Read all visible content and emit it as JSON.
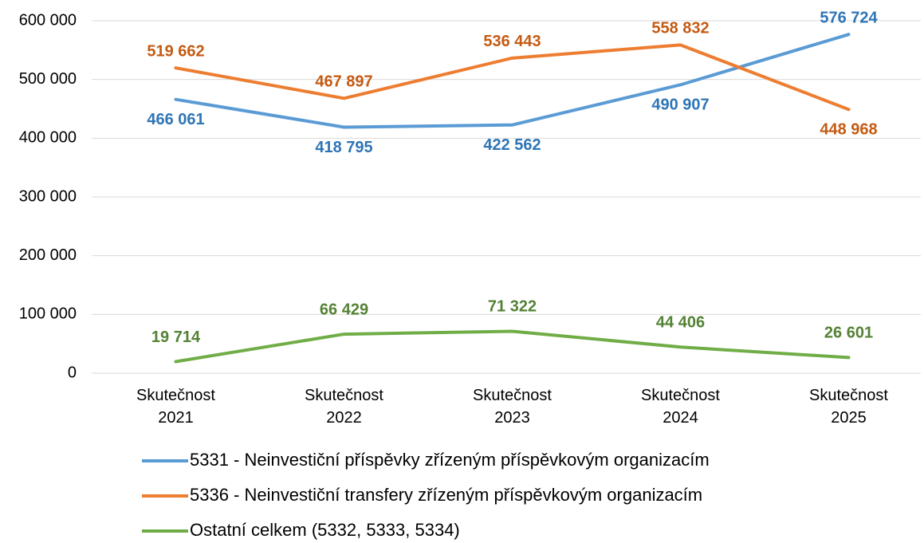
{
  "chart_data": {
    "type": "line",
    "categories": [
      "Skutečnost 2021",
      "Skutečnost 2022",
      "Skutečnost 2023",
      "Skutečnost 2024",
      "Skutečnost 2025"
    ],
    "series": [
      {
        "name": "5331 - Neinvestiční příspěvky zřízeným příspěvkovým organizacím",
        "color": "#5b9bd5",
        "label_color": "#2e75b6",
        "values": [
          466061,
          418795,
          422562,
          490907,
          576724
        ],
        "value_labels": [
          "466 061",
          "418 795",
          "422 562",
          "490 907",
          "576 724"
        ]
      },
      {
        "name": "5336 - Neinvestiční transfery zřízeným příspěvkovým organizacím",
        "color": "#ed7d31",
        "label_color": "#c55a11",
        "values": [
          519662,
          467897,
          536443,
          558832,
          448968
        ],
        "value_labels": [
          "519 662",
          "467 897",
          "536 443",
          "558 832",
          "448 968"
        ]
      },
      {
        "name": "Ostatní celkem (5332, 5333, 5334)",
        "color": "#70ad47",
        "label_color": "#548235",
        "values": [
          19714,
          66429,
          71322,
          44406,
          26601
        ],
        "value_labels": [
          "19 714",
          "66 429",
          "71 322",
          "44 406",
          "26 601"
        ]
      }
    ],
    "ylim": [
      0,
      600000
    ],
    "yticks": [
      0,
      {
        "value": 100000,
        "label": "100 000"
      },
      {
        "value": 200000,
        "label": "200 000"
      },
      {
        "value": 300000,
        "label": "300 000"
      },
      {
        "value": 400000,
        "label": "400 000"
      },
      {
        "value": 500000,
        "label": "500 000"
      },
      {
        "value": 600000,
        "label": "600 000"
      }
    ],
    "grid": true,
    "legend": "bottom"
  }
}
